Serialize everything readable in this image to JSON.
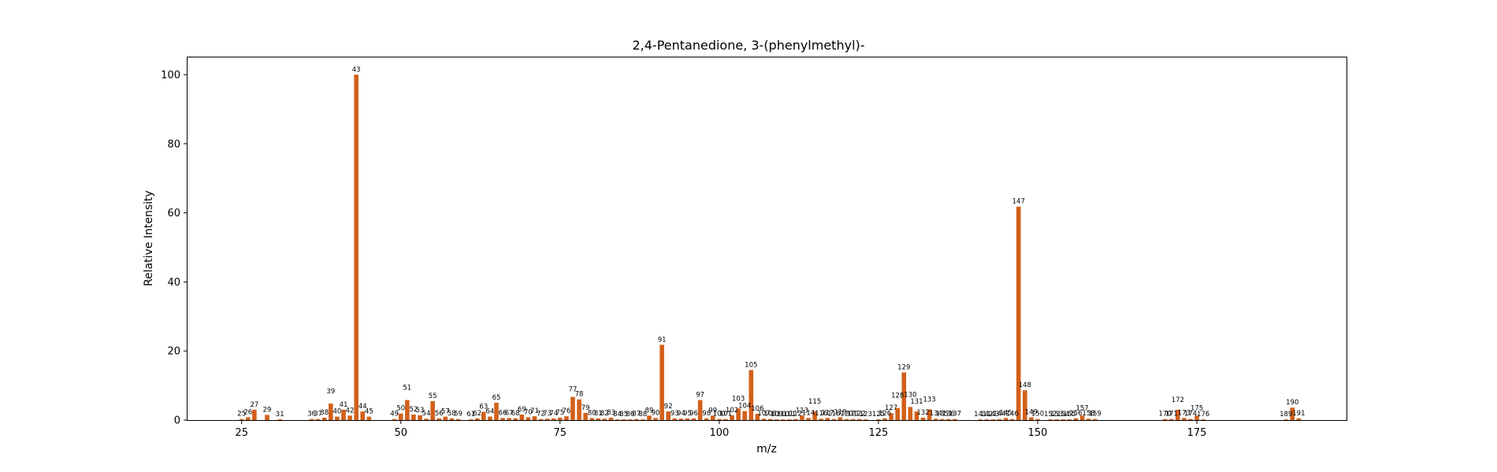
{
  "chart_data": {
    "type": "bar",
    "title": "2,4-Pentanedione, 3-(phenylmethyl)-",
    "xlabel": "m/z",
    "ylabel": "Relative Intensity",
    "xlim": [
      16.5,
      198.5
    ],
    "ylim": [
      0,
      105
    ],
    "xticks": [
      25,
      50,
      75,
      100,
      125,
      150,
      175
    ],
    "yticks": [
      0,
      20,
      40,
      60,
      80,
      100
    ],
    "grid": false,
    "bar_color": "#d2601a",
    "x": [
      25,
      26,
      27,
      29,
      31,
      36,
      37,
      38,
      39,
      40,
      41,
      42,
      43,
      44,
      45,
      49,
      50,
      51,
      52,
      53,
      54,
      55,
      56,
      57,
      58,
      59,
      61,
      62,
      63,
      64,
      65,
      66,
      67,
      68,
      69,
      70,
      71,
      72,
      73,
      74,
      75,
      76,
      77,
      78,
      79,
      80,
      81,
      82,
      83,
      84,
      85,
      86,
      87,
      88,
      89,
      90,
      91,
      92,
      93,
      94,
      95,
      96,
      97,
      98,
      99,
      100,
      101,
      102,
      103,
      104,
      105,
      106,
      107,
      108,
      109,
      110,
      111,
      112,
      113,
      114,
      115,
      116,
      117,
      118,
      119,
      120,
      121,
      122,
      123,
      125,
      126,
      127,
      128,
      129,
      130,
      131,
      132,
      133,
      134,
      135,
      136,
      137,
      141,
      142,
      143,
      144,
      145,
      146,
      147,
      148,
      149,
      150,
      152,
      153,
      154,
      155,
      156,
      157,
      158,
      159,
      170,
      171,
      172,
      173,
      174,
      175,
      176,
      189,
      190,
      191
    ],
    "values": [
      0.3,
      0.8,
      3.0,
      1.5,
      0.2,
      0.3,
      0.3,
      0.7,
      4.8,
      1.0,
      3.0,
      1.3,
      100,
      2.5,
      1.0,
      0.3,
      1.9,
      5.8,
      1.6,
      1.4,
      0.4,
      5.5,
      0.5,
      1.0,
      0.5,
      0.3,
      0.2,
      0.5,
      2.4,
      1.0,
      5.0,
      0.6,
      0.6,
      0.5,
      1.6,
      0.8,
      1.1,
      0.3,
      0.4,
      0.5,
      0.7,
      1.1,
      6.7,
      6.0,
      2.1,
      0.6,
      0.5,
      0.4,
      0.7,
      0.2,
      0.2,
      0.2,
      0.3,
      0.2,
      1.3,
      0.6,
      21.8,
      2.5,
      0.5,
      0.4,
      0.5,
      0.5,
      5.8,
      0.5,
      1.3,
      0.3,
      0.3,
      1.4,
      3.3,
      2.6,
      14.5,
      1.8,
      0.4,
      0.3,
      0.2,
      0.2,
      0.2,
      0.3,
      1.3,
      0.6,
      2.5,
      0.4,
      0.6,
      0.3,
      0.8,
      0.3,
      0.3,
      0.3,
      0.2,
      0.2,
      0.5,
      2.0,
      3.5,
      13.8,
      3.8,
      2.5,
      0.7,
      3.1,
      0.4,
      0.3,
      0.3,
      0.3,
      0.2,
      0.2,
      0.2,
      0.3,
      0.6,
      0.3,
      61.8,
      8.6,
      0.8,
      0.3,
      0.2,
      0.2,
      0.2,
      0.2,
      0.5,
      1.3,
      0.4,
      0.3,
      0.3,
      0.3,
      3.0,
      0.6,
      0.3,
      1.3,
      0.2,
      0.2,
      3.6,
      0.5
    ],
    "label_offsets": {
      "39": 3,
      "40": 0,
      "41": 0,
      "51": 3,
      "77": 1,
      "78": 0,
      "103": 2,
      "104": 0,
      "115": 2,
      "128": 3,
      "130": 3,
      "131": 2,
      "133": 2,
      "157": 1,
      "172": 2,
      "175": 1
    }
  }
}
